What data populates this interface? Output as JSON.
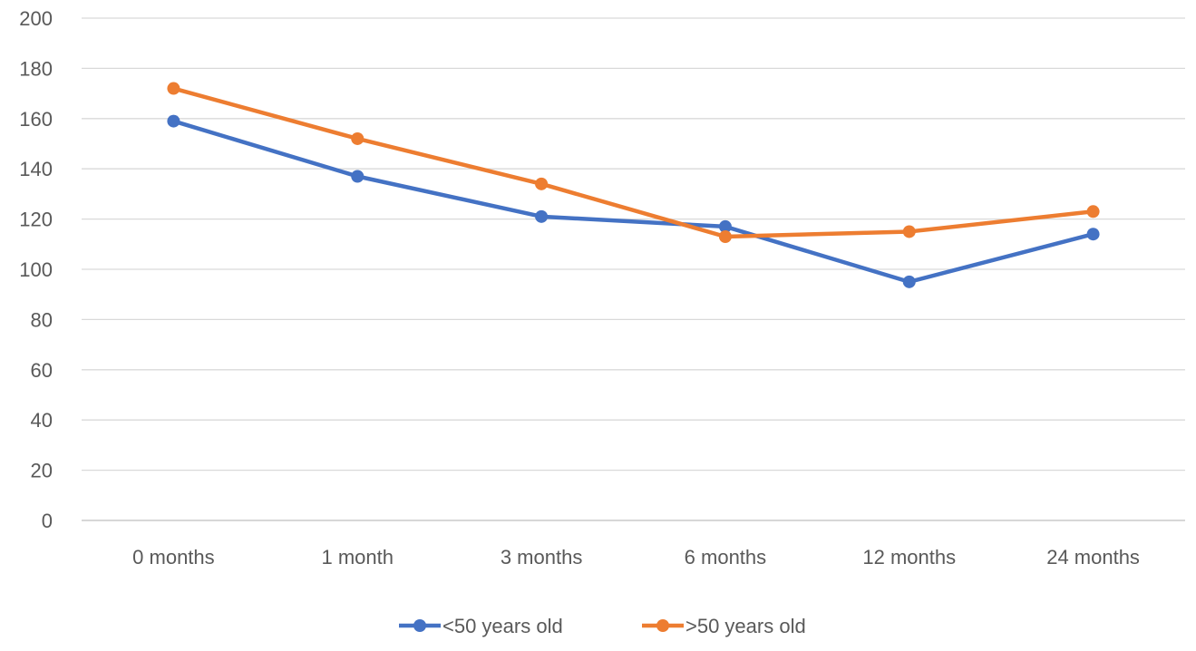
{
  "chart_data": {
    "type": "line",
    "title": "",
    "xlabel": "",
    "ylabel": "",
    "categories": [
      "0 months",
      "1 month",
      "3 months",
      "6 months",
      "12 months",
      "24 months"
    ],
    "ylim": [
      0,
      200
    ],
    "yticks": [
      "0",
      "20",
      "40",
      "60",
      "80",
      "100",
      "120",
      "140",
      "160",
      "180",
      "200"
    ],
    "grid": true,
    "legend_position": "bottom",
    "series": [
      {
        "name": "<50 years old",
        "color": "#4472C4",
        "values": [
          159,
          137,
          121,
          117,
          95,
          114
        ]
      },
      {
        "name": ">50 years old",
        "color": "#ED7D31",
        "values": [
          172,
          152,
          134,
          113,
          115,
          123
        ]
      }
    ]
  }
}
